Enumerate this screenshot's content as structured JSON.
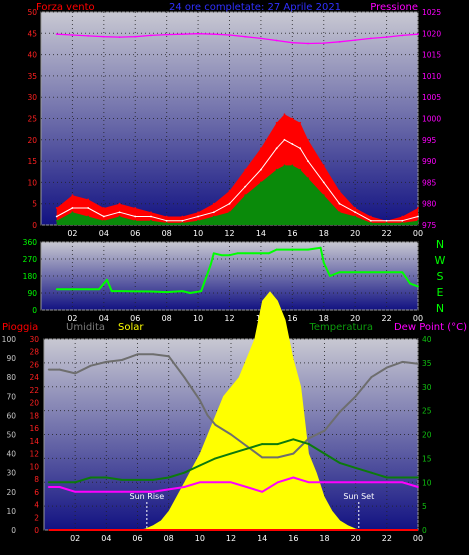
{
  "header": {
    "wind_title": "Forza vento",
    "date_range": "24 ore completate: 27 Aprile 2021",
    "pressure_title": "Pressione"
  },
  "compass": [
    "N",
    "W",
    "S",
    "E",
    "N"
  ],
  "lower_header": {
    "rain": "Pioggia",
    "humidity": "Umidita",
    "solar": "Solar",
    "temperature": "Temperatura",
    "dewpoint": "Dew Point (°C)"
  },
  "annotations": {
    "sunrise": "Sun Rise",
    "sunset": "Sun Set"
  },
  "colors": {
    "plot_top": "#c8c8d2",
    "plot_bottom": "#121282",
    "wind_gust": "#ff0000",
    "wind_avg": "#0a8a0a",
    "wind_white": "#ffffff",
    "pressure": "#ff00ff",
    "direction": "#00ff00",
    "humidity": "#6e6e6e",
    "solar": "#ffff00",
    "temperature": "#0c7a0c",
    "dewpoint": "#ff00ff",
    "rain": "#ff0000"
  },
  "chart_data": [
    {
      "type": "line",
      "name": "wind_pressure",
      "x_ticks": [
        "02",
        "04",
        "06",
        "08",
        "10",
        "12",
        "14",
        "16",
        "18",
        "20",
        "22",
        "00"
      ],
      "y_left_ticks": [
        0,
        5,
        10,
        15,
        20,
        25,
        30,
        35,
        40,
        45,
        50
      ],
      "y_left_range": [
        0,
        50
      ],
      "y_right_ticks": [
        975,
        980,
        985,
        990,
        995,
        1000,
        1005,
        1010,
        1015,
        1020,
        1025
      ],
      "y_right_range": [
        975,
        1025
      ],
      "grid": true,
      "series": [
        {
          "name": "Forza vento",
          "role": "gust",
          "x": [
            1,
            2,
            3,
            4,
            5,
            6,
            7,
            8,
            9,
            10,
            11,
            12,
            13,
            14,
            15,
            15.5,
            16,
            16.5,
            17,
            18,
            19,
            20,
            21,
            22,
            23,
            24
          ],
          "y": [
            4,
            7,
            6,
            4,
            5,
            4,
            3,
            2,
            2,
            3,
            5,
            8,
            13,
            18,
            24,
            26,
            25,
            24,
            20,
            14,
            8,
            4,
            2,
            1,
            2,
            4
          ]
        },
        {
          "name": "",
          "role": "speed",
          "x": [
            1,
            2,
            3,
            4,
            5,
            6,
            7,
            8,
            9,
            10,
            11,
            12,
            13,
            14,
            15,
            15.5,
            16,
            16.5,
            17,
            18,
            19,
            20,
            21,
            22,
            23,
            24
          ],
          "y": [
            2,
            4,
            4,
            2,
            3,
            2,
            2,
            1,
            1,
            2,
            3,
            5,
            9,
            13,
            18,
            20,
            19,
            18,
            15,
            10,
            5,
            3,
            1,
            1,
            1,
            2
          ]
        },
        {
          "name": "",
          "role": "average",
          "x": [
            1,
            2,
            3,
            4,
            5,
            6,
            7,
            8,
            9,
            10,
            11,
            12,
            13,
            14,
            15,
            15.5,
            16,
            16.5,
            17,
            18,
            19,
            20,
            21,
            22,
            23,
            24
          ],
          "y": [
            1,
            3,
            2,
            1,
            2,
            1,
            1,
            0.5,
            0.5,
            1,
            2,
            3,
            7,
            10,
            13,
            14,
            14,
            13,
            11,
            7,
            3,
            2,
            0.5,
            0.5,
            0.5,
            1
          ]
        },
        {
          "name": "Pressione",
          "role": "pressure",
          "x": [
            1,
            2,
            3,
            4,
            5,
            6,
            7,
            8,
            9,
            10,
            11,
            12,
            13,
            14,
            15,
            16,
            17,
            18,
            19,
            20,
            21,
            22,
            23,
            24
          ],
          "y": [
            1019.8,
            1019.6,
            1019.4,
            1019.2,
            1019.1,
            1019.2,
            1019.5,
            1019.7,
            1019.8,
            1019.9,
            1019.8,
            1019.6,
            1019.2,
            1018.8,
            1018.3,
            1017.8,
            1017.6,
            1017.7,
            1018.0,
            1018.4,
            1018.8,
            1019.1,
            1019.5,
            1019.8
          ]
        }
      ]
    },
    {
      "type": "line",
      "name": "wind_direction",
      "x_ticks": [
        "02",
        "04",
        "06",
        "08",
        "10",
        "12",
        "14",
        "16",
        "18",
        "20",
        "22",
        "00"
      ],
      "y_ticks": [
        0,
        90,
        180,
        270,
        360
      ],
      "y_range": [
        0,
        360
      ],
      "grid": true,
      "series": [
        {
          "name": "",
          "role": "direction",
          "x": [
            1,
            3,
            3.7,
            4.2,
            4.5,
            5,
            7,
            8,
            9,
            9.5,
            10.2,
            10.8,
            11,
            11.5,
            12,
            12.5,
            13,
            13.5,
            14,
            14.5,
            15,
            16,
            17,
            17.8,
            18,
            18.4,
            19,
            20,
            21,
            22,
            23,
            23.5,
            24
          ],
          "y": [
            110,
            110,
            110,
            160,
            100,
            100,
            98,
            95,
            100,
            90,
            100,
            240,
            300,
            290,
            290,
            300,
            300,
            300,
            300,
            300,
            320,
            320,
            320,
            330,
            250,
            180,
            200,
            200,
            200,
            200,
            200,
            140,
            125
          ]
        }
      ]
    },
    {
      "type": "line",
      "name": "temperature_humidity_solar",
      "x_ticks": [
        "02",
        "04",
        "06",
        "08",
        "10",
        "12",
        "14",
        "16",
        "18",
        "20",
        "22",
        "00"
      ],
      "y_left_outer_ticks": [
        0,
        10,
        20,
        30,
        40,
        50,
        60,
        70,
        80,
        90,
        100
      ],
      "y_left_outer_range": [
        0,
        100
      ],
      "y_left_inner_ticks": [
        0,
        2,
        4,
        6,
        8,
        10,
        12,
        14,
        16,
        18,
        20,
        22,
        24,
        26,
        28,
        30
      ],
      "y_left_inner_range": [
        0,
        30
      ],
      "y_right_ticks": [
        0,
        5,
        10,
        15,
        20,
        25,
        30,
        35,
        40
      ],
      "y_right_range": [
        0,
        40
      ],
      "grid": true,
      "series": [
        {
          "name": "Umidita",
          "role": "humidity",
          "x": [
            0.3,
            1,
            2,
            3,
            4,
            5,
            6,
            7,
            8,
            9,
            10,
            10.5,
            11,
            12,
            13,
            14,
            15,
            16,
            17,
            18,
            19,
            20,
            21,
            22,
            23,
            24
          ],
          "y": [
            84,
            84,
            82,
            86,
            88,
            89,
            92,
            92,
            91,
            80,
            68,
            60,
            55,
            50,
            44,
            38,
            38,
            40,
            48,
            52,
            62,
            70,
            80,
            85,
            88,
            87
          ]
        },
        {
          "name": "Solar",
          "role": "solar",
          "x": [
            5.5,
            6,
            6.5,
            7,
            7.5,
            8,
            8.5,
            9,
            9.5,
            10,
            10.5,
            11,
            11.5,
            12,
            12.5,
            13,
            13.5,
            14,
            14.5,
            15,
            15.5,
            16,
            16.5,
            17,
            17.5,
            18,
            18.5,
            19,
            19.5,
            20,
            20.5
          ],
          "y": [
            0,
            0,
            0.3,
            1,
            2,
            4,
            7,
            10,
            13,
            16,
            20,
            24,
            28,
            30,
            32,
            36,
            40,
            48,
            50,
            48,
            44,
            36,
            30,
            16,
            12,
            7,
            4,
            2,
            1,
            0.3,
            0
          ]
        },
        {
          "name": "Temperatura",
          "role": "temperature",
          "x": [
            0.3,
            1,
            2,
            3,
            4,
            5,
            6,
            7,
            8,
            9,
            10,
            11,
            12,
            13,
            14,
            15,
            16,
            17,
            18,
            19,
            20,
            21,
            22,
            23,
            24
          ],
          "y": [
            10,
            10,
            10,
            11,
            11,
            10.5,
            10.5,
            10.5,
            11,
            12,
            13.5,
            15,
            16,
            17,
            18,
            18,
            19,
            18,
            16,
            14,
            13,
            12,
            11,
            11,
            11
          ]
        },
        {
          "name": "Dew Point",
          "role": "dewpoint",
          "x": [
            0.3,
            1,
            2,
            3,
            4,
            5,
            6,
            7,
            8,
            9,
            10,
            11,
            12,
            13,
            14,
            15,
            16,
            17,
            18,
            19,
            20,
            21,
            22,
            23,
            24
          ],
          "y": [
            9,
            9,
            8,
            8,
            8,
            8,
            8,
            8,
            8.5,
            9,
            10,
            10,
            10,
            9,
            8,
            10,
            11,
            10,
            10,
            10,
            10,
            10,
            10,
            10,
            9
          ]
        },
        {
          "name": "Pioggia",
          "role": "rain",
          "x": [
            0.3,
            24
          ],
          "y": [
            0,
            0
          ]
        }
      ]
    }
  ]
}
